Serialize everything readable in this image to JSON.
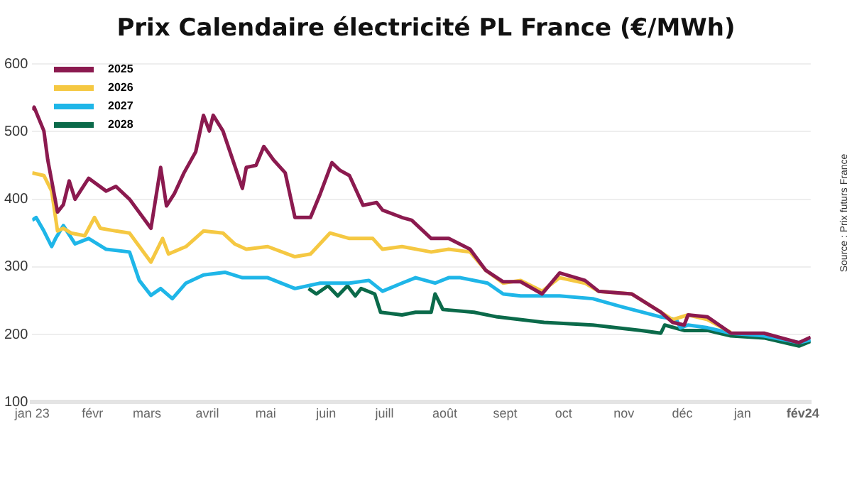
{
  "chart_data": {
    "type": "line",
    "title": "Prix Calendaire électricité PL France (€/MWh)",
    "annotations": [
      "Source : Prix futurs France"
    ],
    "xlim": [
      "2023-01-01",
      "2024-02-05"
    ],
    "xticks": [
      {
        "value": "2023-01-01",
        "label": "jan 23"
      },
      {
        "value": "2023-02-01",
        "label": "févr"
      },
      {
        "value": "2023-03-01",
        "label": "mars"
      },
      {
        "value": "2023-04-01",
        "label": "avril"
      },
      {
        "value": "2023-05-01",
        "label": "mai"
      },
      {
        "value": "2023-06-01",
        "label": "juin"
      },
      {
        "value": "2023-07-01",
        "label": "juill"
      },
      {
        "value": "2023-08-01",
        "label": "août"
      },
      {
        "value": "2023-09-01",
        "label": "sept"
      },
      {
        "value": "2023-10-01",
        "label": "oct"
      },
      {
        "value": "2023-11-01",
        "label": "nov"
      },
      {
        "value": "2023-12-01",
        "label": "déc"
      },
      {
        "value": "2024-01-01",
        "label": "jan"
      },
      {
        "value": "2024-02-01",
        "label": "fév24"
      }
    ],
    "ylim": [
      100,
      600
    ],
    "yticks": [
      100,
      200,
      300,
      400,
      500,
      600
    ],
    "grid": "y",
    "legend": "top left",
    "marker": "none",
    "line_style": "solid",
    "series": [
      {
        "name": "2025",
        "color": "#8b1a4f",
        "x": [
          "2023-01-01",
          "2023-01-02",
          "2023-01-07",
          "2023-01-09",
          "2023-01-12",
          "2023-01-14",
          "2023-01-17",
          "2023-01-20",
          "2023-01-23",
          "2023-01-30",
          "2023-02-08",
          "2023-02-13",
          "2023-02-20",
          "2023-03-03",
          "2023-03-08",
          "2023-03-11",
          "2023-03-15",
          "2023-03-20",
          "2023-03-26",
          "2023-03-30",
          "2023-04-02",
          "2023-04-04",
          "2023-04-09",
          "2023-04-15",
          "2023-04-19",
          "2023-04-21",
          "2023-04-26",
          "2023-04-30",
          "2023-05-05",
          "2023-05-11",
          "2023-05-16",
          "2023-05-24",
          "2023-05-29",
          "2023-06-04",
          "2023-06-08",
          "2023-06-13",
          "2023-06-20",
          "2023-06-27",
          "2023-06-30",
          "2023-07-10",
          "2023-07-15",
          "2023-07-25",
          "2023-08-03",
          "2023-08-14",
          "2023-08-22",
          "2023-08-31",
          "2023-09-09",
          "2023-09-20",
          "2023-09-29",
          "2023-10-12",
          "2023-10-19",
          "2023-11-05",
          "2023-11-20",
          "2023-11-26",
          "2023-12-02",
          "2023-12-04",
          "2023-12-14",
          "2023-12-26",
          "2024-01-12",
          "2024-01-30",
          "2024-02-05"
        ],
        "values": [
          532,
          536,
          501,
          458,
          412,
          381,
          392,
          427,
          400,
          431,
          412,
          419,
          400,
          357,
          447,
          390,
          408,
          439,
          470,
          524,
          501,
          524,
          501,
          450,
          416,
          447,
          450,
          478,
          458,
          439,
          373,
          373,
          408,
          454,
          443,
          435,
          391,
          395,
          384,
          373,
          369,
          342,
          342,
          326,
          295,
          278,
          278,
          260,
          291,
          280,
          264,
          260,
          233,
          218,
          214,
          229,
          226,
          202,
          202,
          188,
          196
        ]
      },
      {
        "name": "2026",
        "color": "#f5c842",
        "x": [
          "2023-01-01",
          "2023-01-07",
          "2023-01-11",
          "2023-01-14",
          "2023-01-17",
          "2023-01-21",
          "2023-01-28",
          "2023-02-02",
          "2023-02-05",
          "2023-02-13",
          "2023-02-20",
          "2023-03-03",
          "2023-03-09",
          "2023-03-12",
          "2023-03-21",
          "2023-03-30",
          "2023-04-09",
          "2023-04-15",
          "2023-04-21",
          "2023-05-02",
          "2023-05-16",
          "2023-05-24",
          "2023-06-03",
          "2023-06-13",
          "2023-06-25",
          "2023-06-30",
          "2023-07-10",
          "2023-07-25",
          "2023-08-03",
          "2023-08-14",
          "2023-08-22",
          "2023-08-31",
          "2023-09-09",
          "2023-09-20",
          "2023-09-29",
          "2023-10-12",
          "2023-10-19",
          "2023-11-05",
          "2023-11-20",
          "2023-11-26",
          "2023-12-04",
          "2023-12-14",
          "2023-12-26"
        ],
        "values": [
          439,
          435,
          412,
          353,
          357,
          350,
          346,
          373,
          357,
          353,
          350,
          307,
          342,
          319,
          330,
          353,
          350,
          334,
          326,
          330,
          315,
          319,
          350,
          342,
          342,
          326,
          330,
          322,
          326,
          322,
          295,
          276,
          280,
          264,
          284,
          276,
          264,
          260,
          233,
          222,
          229,
          222,
          203
        ]
      },
      {
        "name": "2027",
        "color": "#1fb6e8",
        "x": [
          "2023-01-01",
          "2023-01-03",
          "2023-01-07",
          "2023-01-11",
          "2023-01-13",
          "2023-01-17",
          "2023-01-23",
          "2023-01-30",
          "2023-02-08",
          "2023-02-20",
          "2023-02-25",
          "2023-03-03",
          "2023-03-08",
          "2023-03-14",
          "2023-03-21",
          "2023-03-30",
          "2023-04-10",
          "2023-04-19",
          "2023-05-02",
          "2023-05-16",
          "2023-05-29",
          "2023-06-13",
          "2023-06-23",
          "2023-06-30",
          "2023-07-10",
          "2023-07-17",
          "2023-07-27",
          "2023-08-03",
          "2023-08-09",
          "2023-08-23",
          "2023-08-31",
          "2023-09-09",
          "2023-09-29",
          "2023-10-16",
          "2023-10-31",
          "2023-11-20",
          "2023-11-28",
          "2023-11-30",
          "2023-12-04",
          "2023-12-14",
          "2023-12-26",
          "2024-01-12",
          "2024-01-30",
          "2024-02-05"
        ],
        "values": [
          369,
          373,
          353,
          330,
          342,
          361,
          334,
          342,
          326,
          322,
          280,
          258,
          268,
          253,
          276,
          288,
          292,
          284,
          284,
          268,
          276,
          276,
          280,
          264,
          276,
          284,
          276,
          284,
          284,
          276,
          260,
          257,
          257,
          253,
          241,
          226,
          222,
          210,
          214,
          210,
          202,
          198,
          188,
          192
        ]
      },
      {
        "name": "2028",
        "color": "#0b6a4a",
        "x": [
          "2023-05-23",
          "2023-05-27",
          "2023-06-02",
          "2023-06-07",
          "2023-06-12",
          "2023-06-16",
          "2023-06-19",
          "2023-06-26",
          "2023-06-29",
          "2023-07-10",
          "2023-07-17",
          "2023-07-25",
          "2023-07-27",
          "2023-07-31",
          "2023-08-16",
          "2023-08-28",
          "2023-09-21",
          "2023-10-16",
          "2023-11-10",
          "2023-11-20",
          "2023-11-22",
          "2023-12-02",
          "2023-12-14",
          "2023-12-26",
          "2024-01-12",
          "2024-01-30",
          "2024-02-05"
        ],
        "values": [
          268,
          260,
          272,
          257,
          272,
          257,
          268,
          260,
          233,
          229,
          233,
          233,
          260,
          237,
          233,
          226,
          218,
          214,
          206,
          202,
          214,
          206,
          206,
          198,
          195,
          183,
          190
        ]
      }
    ]
  }
}
